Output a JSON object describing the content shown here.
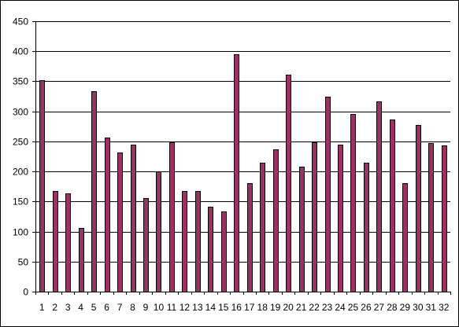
{
  "chart_data": {
    "type": "bar",
    "title": "",
    "xlabel": "",
    "ylabel": "",
    "ylim": [
      0,
      450
    ],
    "yticks": [
      0,
      50,
      100,
      150,
      200,
      250,
      300,
      350,
      400,
      450
    ],
    "grid": true,
    "legend": "none",
    "bar_color": "#993366",
    "categories": [
      "1",
      "2",
      "3",
      "4",
      "5",
      "6",
      "7",
      "8",
      "9",
      "10",
      "11",
      "12",
      "13",
      "14",
      "15",
      "16",
      "17",
      "18",
      "19",
      "20",
      "21",
      "22",
      "23",
      "24",
      "25",
      "26",
      "27",
      "28",
      "29",
      "30",
      "31",
      "32"
    ],
    "series": [
      {
        "values": [
          352,
          168,
          163,
          106,
          333,
          257,
          232,
          245,
          156,
          200,
          248,
          168,
          168,
          141,
          134,
          395,
          181,
          214,
          237,
          361,
          208,
          249,
          325,
          244,
          296,
          214,
          316,
          287,
          180,
          277,
          247,
          243
        ]
      }
    ]
  }
}
